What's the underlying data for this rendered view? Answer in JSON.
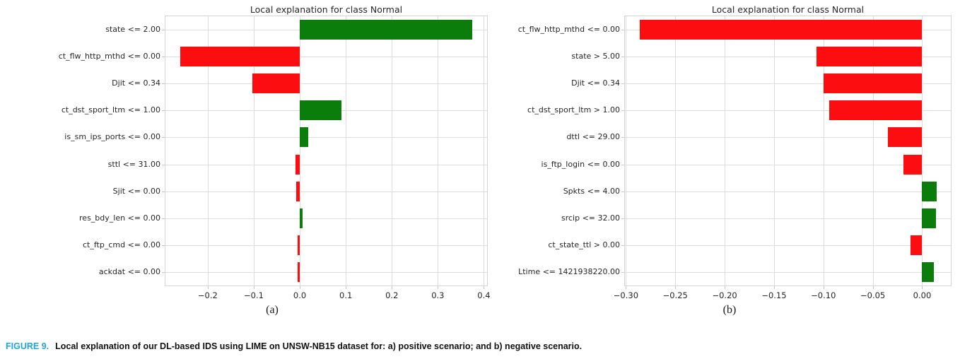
{
  "figure": {
    "caption_label": "FIGURE 9.",
    "caption_text": "Local explanation of our DL-based IDS using LIME on UNSW-NB15 dataset for: a) positive scenario; and b) negative scenario."
  },
  "colors": {
    "positive_bar": "#0b7d0b",
    "negative_bar": "#fb0d10",
    "grid": "#dcdcdc",
    "spine": "#d4d4d4",
    "tick_mark": "#c4c4c4",
    "figure_label": "#1ca7dc",
    "text": "#262626"
  },
  "chart_data": [
    {
      "type": "bar",
      "orientation": "horizontal",
      "title": "Local explanation for class Normal",
      "sublabel": "(a)",
      "legend": "none",
      "grid": "on",
      "categories": [
        "state <= 2.00",
        "ct_flw_http_mthd <= 0.00",
        "Djit <= 0.34",
        "ct_dst_sport_ltm <= 1.00",
        "is_sm_ips_ports <= 0.00",
        "sttl <= 31.00",
        "Sjit <= 0.00",
        "res_bdy_len <= 0.00",
        "ct_ftp_cmd <= 0.00",
        "ackdat <= 0.00"
      ],
      "values": [
        0.375,
        -0.26,
        -0.103,
        0.09,
        0.019,
        -0.01,
        -0.008,
        0.006,
        -0.005,
        -0.004
      ],
      "positive_color_meaning": "supports class Normal (green)",
      "negative_color_meaning": "contradicts class Normal (red)",
      "xlim": [
        -0.292,
        0.407
      ],
      "xticks": [
        -0.2,
        -0.1,
        0.0,
        0.1,
        0.2,
        0.3,
        0.4
      ],
      "xtick_labels": [
        "−0.2",
        "−0.1",
        "0.0",
        "0.1",
        "0.2",
        "0.3",
        "0.4"
      ]
    },
    {
      "type": "bar",
      "orientation": "horizontal",
      "title": "Local explanation for class Normal",
      "sublabel": "(b)",
      "legend": "none",
      "grid": "on",
      "categories": [
        "ct_flw_http_mthd <= 0.00",
        "state > 5.00",
        "Djit <= 0.34",
        "ct_dst_sport_ltm > 1.00",
        "dttl <= 29.00",
        "is_ftp_login <= 0.00",
        "Spkts <= 4.00",
        "srcip <= 32.00",
        "ct_state_ttl > 0.00",
        "Ltime <= 1421938220.00"
      ],
      "values": [
        -0.286,
        -0.107,
        -0.1,
        -0.094,
        -0.035,
        -0.019,
        0.015,
        0.014,
        -0.012,
        0.012
      ],
      "positive_color_meaning": "supports class Normal (green)",
      "negative_color_meaning": "contradicts class Normal (red)",
      "xlim": [
        -0.301,
        0.029
      ],
      "xticks": [
        -0.3,
        -0.25,
        -0.2,
        -0.15,
        -0.1,
        -0.05,
        0.0
      ],
      "xtick_labels": [
        "−0.30",
        "−0.25",
        "−0.20",
        "−0.15",
        "−0.10",
        "−0.05",
        "0.00"
      ]
    }
  ]
}
